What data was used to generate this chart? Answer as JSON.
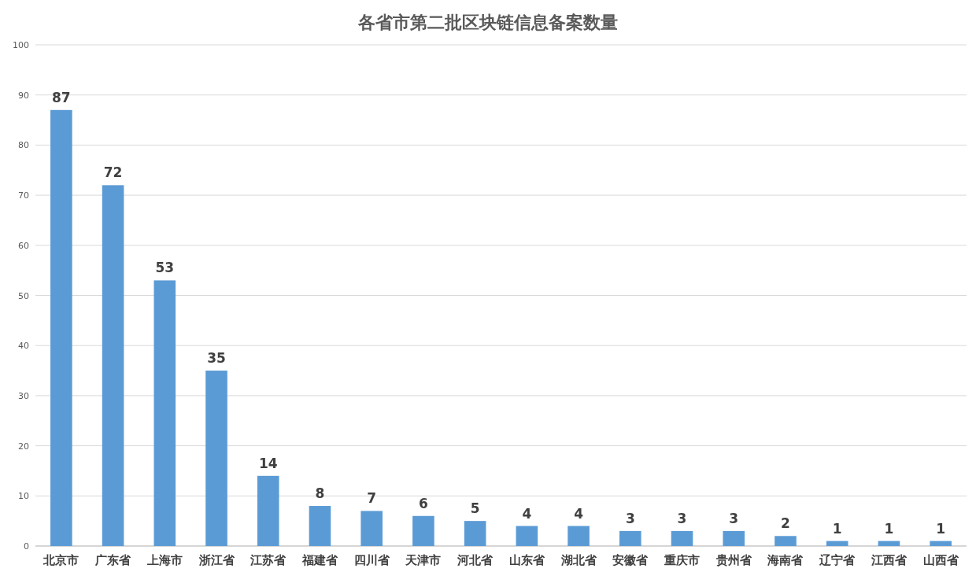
{
  "chart_data": {
    "type": "bar",
    "title": "各省市第二批区块链信息备案数量",
    "categories": [
      "北京市",
      "广东省",
      "上海市",
      "浙江省",
      "江苏省",
      "福建省",
      "四川省",
      "天津市",
      "河北省",
      "山东省",
      "湖北省",
      "安徽省",
      "重庆市",
      "贵州省",
      "海南省",
      "辽宁省",
      "江西省",
      "山西省"
    ],
    "values": [
      87,
      72,
      53,
      35,
      14,
      8,
      7,
      6,
      5,
      4,
      4,
      3,
      3,
      3,
      2,
      1,
      1,
      1
    ],
    "color": "#5b9bd5",
    "ylim": [
      0,
      100
    ],
    "yticks": [
      0,
      10,
      20,
      30,
      40,
      50,
      60,
      70,
      80,
      90,
      100
    ],
    "grid": "y",
    "data_labels": true
  }
}
